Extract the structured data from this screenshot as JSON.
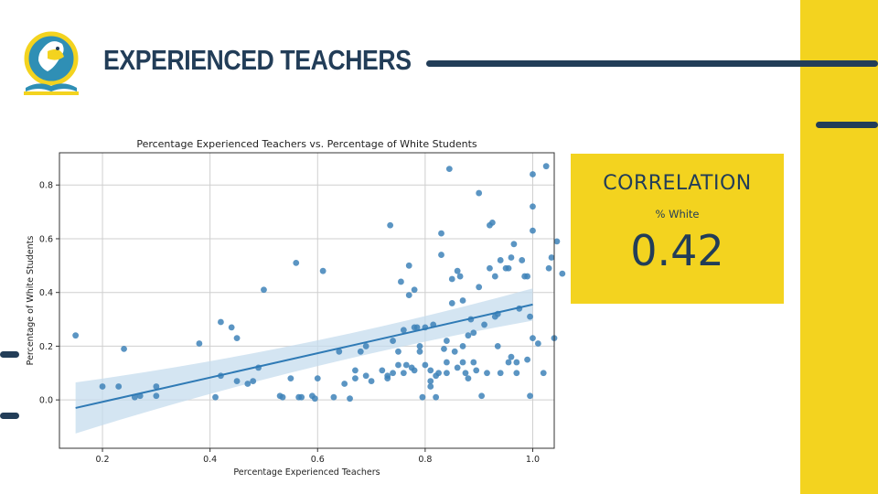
{
  "slide": {
    "title": "EXPERIENCED TEACHERS",
    "logo_icon": "bird-on-book-icon",
    "colors": {
      "navy": "#223d58",
      "yellow": "#f3d31f",
      "point": "#3e82b8",
      "band": "#c6dcee"
    }
  },
  "correlation": {
    "label": "CORRELATION",
    "variable": "% White",
    "value": "0.42"
  },
  "chart_data": {
    "type": "scatter",
    "title": "Percentage Experienced Teachers vs. Percentage of White Students",
    "xlabel": "Percentage Experienced Teachers",
    "ylabel": "Percentage of White Students",
    "xlim": [
      0.12,
      1.04
    ],
    "ylim": [
      -0.18,
      0.92
    ],
    "xticks": [
      0.2,
      0.4,
      0.6,
      0.8,
      1.0
    ],
    "xtick_labels": [
      "0.2",
      "0.4",
      "0.6",
      "0.8",
      "1.0"
    ],
    "yticks": [
      0.0,
      0.2,
      0.4,
      0.6,
      0.8
    ],
    "ytick_labels": [
      "0.0",
      "0.2",
      "0.4",
      "0.6",
      "0.8"
    ],
    "grid": true,
    "regression": {
      "x_start": 0.15,
      "x_end": 1.0,
      "y_start": -0.03,
      "y_end": 0.355,
      "ci_start": 0.095,
      "ci_end": 0.06
    },
    "points": [
      [
        0.15,
        0.24
      ],
      [
        0.2,
        0.05
      ],
      [
        0.23,
        0.05
      ],
      [
        0.24,
        0.19
      ],
      [
        0.26,
        0.01
      ],
      [
        0.27,
        0.015
      ],
      [
        0.3,
        0.05
      ],
      [
        0.3,
        0.015
      ],
      [
        0.38,
        0.21
      ],
      [
        0.41,
        0.01
      ],
      [
        0.42,
        0.29
      ],
      [
        0.42,
        0.09
      ],
      [
        0.44,
        0.27
      ],
      [
        0.45,
        0.23
      ],
      [
        0.45,
        0.07
      ],
      [
        0.47,
        0.06
      ],
      [
        0.48,
        0.07
      ],
      [
        0.49,
        0.12
      ],
      [
        0.5,
        0.41
      ],
      [
        0.53,
        0.015
      ],
      [
        0.535,
        0.01
      ],
      [
        0.55,
        0.08
      ],
      [
        0.56,
        0.51
      ],
      [
        0.565,
        0.01
      ],
      [
        0.57,
        0.01
      ],
      [
        0.59,
        0.015
      ],
      [
        0.595,
        0.005
      ],
      [
        0.6,
        0.08
      ],
      [
        0.61,
        0.48
      ],
      [
        0.63,
        0.01
      ],
      [
        0.64,
        0.18
      ],
      [
        0.65,
        0.06
      ],
      [
        0.66,
        0.005
      ],
      [
        0.67,
        0.11
      ],
      [
        0.67,
        0.08
      ],
      [
        0.68,
        0.18
      ],
      [
        0.69,
        0.09
      ],
      [
        0.69,
        0.2
      ],
      [
        0.7,
        0.07
      ],
      [
        0.72,
        0.11
      ],
      [
        0.73,
        0.09
      ],
      [
        0.73,
        0.08
      ],
      [
        0.735,
        0.65
      ],
      [
        0.74,
        0.1
      ],
      [
        0.74,
        0.22
      ],
      [
        0.75,
        0.13
      ],
      [
        0.75,
        0.18
      ],
      [
        0.755,
        0.44
      ],
      [
        0.76,
        0.26
      ],
      [
        0.76,
        0.1
      ],
      [
        0.765,
        0.13
      ],
      [
        0.77,
        0.5
      ],
      [
        0.77,
        0.39
      ],
      [
        0.775,
        0.12
      ],
      [
        0.78,
        0.11
      ],
      [
        0.78,
        0.27
      ],
      [
        0.78,
        0.41
      ],
      [
        0.785,
        0.27
      ],
      [
        0.79,
        0.18
      ],
      [
        0.79,
        0.2
      ],
      [
        0.795,
        0.01
      ],
      [
        0.8,
        0.27
      ],
      [
        0.8,
        0.13
      ],
      [
        0.81,
        0.11
      ],
      [
        0.81,
        0.05
      ],
      [
        0.81,
        0.07
      ],
      [
        0.815,
        0.28
      ],
      [
        0.82,
        0.01
      ],
      [
        0.82,
        0.09
      ],
      [
        0.825,
        0.1
      ],
      [
        0.83,
        0.62
      ],
      [
        0.83,
        0.54
      ],
      [
        0.835,
        0.19
      ],
      [
        0.84,
        0.14
      ],
      [
        0.84,
        0.22
      ],
      [
        0.84,
        0.1
      ],
      [
        0.845,
        0.86
      ],
      [
        0.85,
        0.45
      ],
      [
        0.85,
        0.36
      ],
      [
        0.855,
        0.18
      ],
      [
        0.86,
        0.48
      ],
      [
        0.86,
        0.12
      ],
      [
        0.865,
        0.46
      ],
      [
        0.87,
        0.2
      ],
      [
        0.87,
        0.14
      ],
      [
        0.87,
        0.37
      ],
      [
        0.875,
        0.1
      ],
      [
        0.88,
        0.08
      ],
      [
        0.88,
        0.24
      ],
      [
        0.885,
        0.3
      ],
      [
        0.89,
        0.25
      ],
      [
        0.89,
        0.14
      ],
      [
        0.895,
        0.11
      ],
      [
        0.9,
        0.42
      ],
      [
        0.9,
        0.77
      ],
      [
        0.905,
        0.015
      ],
      [
        0.91,
        0.28
      ],
      [
        0.915,
        0.1
      ],
      [
        0.92,
        0.65
      ],
      [
        0.925,
        0.66
      ],
      [
        0.93,
        0.46
      ],
      [
        0.93,
        0.31
      ],
      [
        0.935,
        0.32
      ],
      [
        0.935,
        0.2
      ],
      [
        0.94,
        0.1
      ],
      [
        0.95,
        0.49
      ],
      [
        0.955,
        0.49
      ],
      [
        0.96,
        0.16
      ],
      [
        0.965,
        0.58
      ],
      [
        0.97,
        0.14
      ],
      [
        0.975,
        0.34
      ],
      [
        0.98,
        0.52
      ],
      [
        0.985,
        0.46
      ],
      [
        0.99,
        0.46
      ],
      [
        0.99,
        0.15
      ],
      [
        0.995,
        0.31
      ],
      [
        0.995,
        0.015
      ],
      [
        1.0,
        0.84
      ],
      [
        1.01,
        0.21
      ],
      [
        1.02,
        0.1
      ],
      [
        1.025,
        0.87
      ],
      [
        1.03,
        0.49
      ],
      [
        1.035,
        0.53
      ],
      [
        1.04,
        0.23
      ],
      [
        1.045,
        0.59
      ],
      [
        1.055,
        0.47
      ],
      [
        0.955,
        0.14
      ],
      [
        0.97,
        0.1
      ],
      [
        1.0,
        0.72
      ],
      [
        1.0,
        0.63
      ],
      [
        1.0,
        0.23
      ],
      [
        0.96,
        0.53
      ],
      [
        0.94,
        0.52
      ],
      [
        0.92,
        0.49
      ]
    ]
  }
}
